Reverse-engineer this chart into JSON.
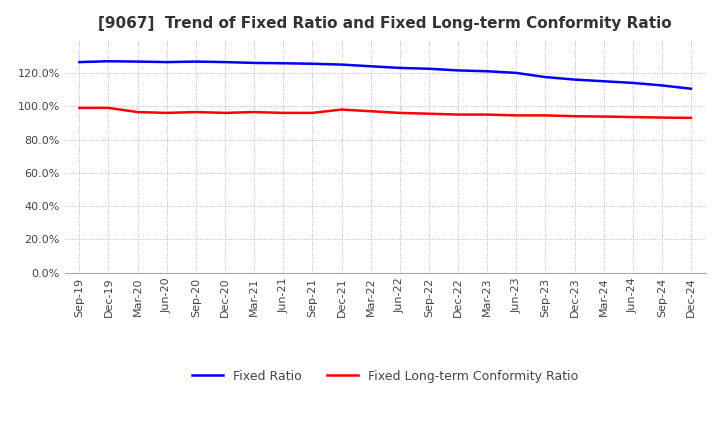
{
  "title": "[9067]  Trend of Fixed Ratio and Fixed Long-term Conformity Ratio",
  "x_labels": [
    "Sep-19",
    "Dec-19",
    "Mar-20",
    "Jun-20",
    "Sep-20",
    "Dec-20",
    "Mar-21",
    "Jun-21",
    "Sep-21",
    "Dec-21",
    "Mar-22",
    "Jun-22",
    "Sep-22",
    "Dec-22",
    "Mar-23",
    "Jun-23",
    "Sep-23",
    "Dec-23",
    "Mar-24",
    "Jun-24",
    "Sep-24",
    "Dec-24"
  ],
  "fixed_ratio": [
    1.265,
    1.27,
    1.268,
    1.265,
    1.268,
    1.265,
    1.26,
    1.258,
    1.255,
    1.25,
    1.24,
    1.23,
    1.225,
    1.215,
    1.21,
    1.2,
    1.175,
    1.16,
    1.15,
    1.14,
    1.125,
    1.105
  ],
  "fixed_lt_ratio": [
    0.99,
    0.99,
    0.965,
    0.96,
    0.965,
    0.96,
    0.965,
    0.96,
    0.96,
    0.98,
    0.97,
    0.96,
    0.955,
    0.95,
    0.95,
    0.945,
    0.945,
    0.94,
    0.938,
    0.935,
    0.932,
    0.93
  ],
  "fixed_ratio_color": "#0000ff",
  "fixed_lt_ratio_color": "#ff0000",
  "ylim": [
    0.0,
    1.4
  ],
  "yticks": [
    0.0,
    0.2,
    0.4,
    0.6,
    0.8,
    1.0,
    1.2
  ],
  "background_color": "#ffffff",
  "grid_color": "#aaaaaa",
  "title_fontsize": 11,
  "tick_fontsize": 8
}
